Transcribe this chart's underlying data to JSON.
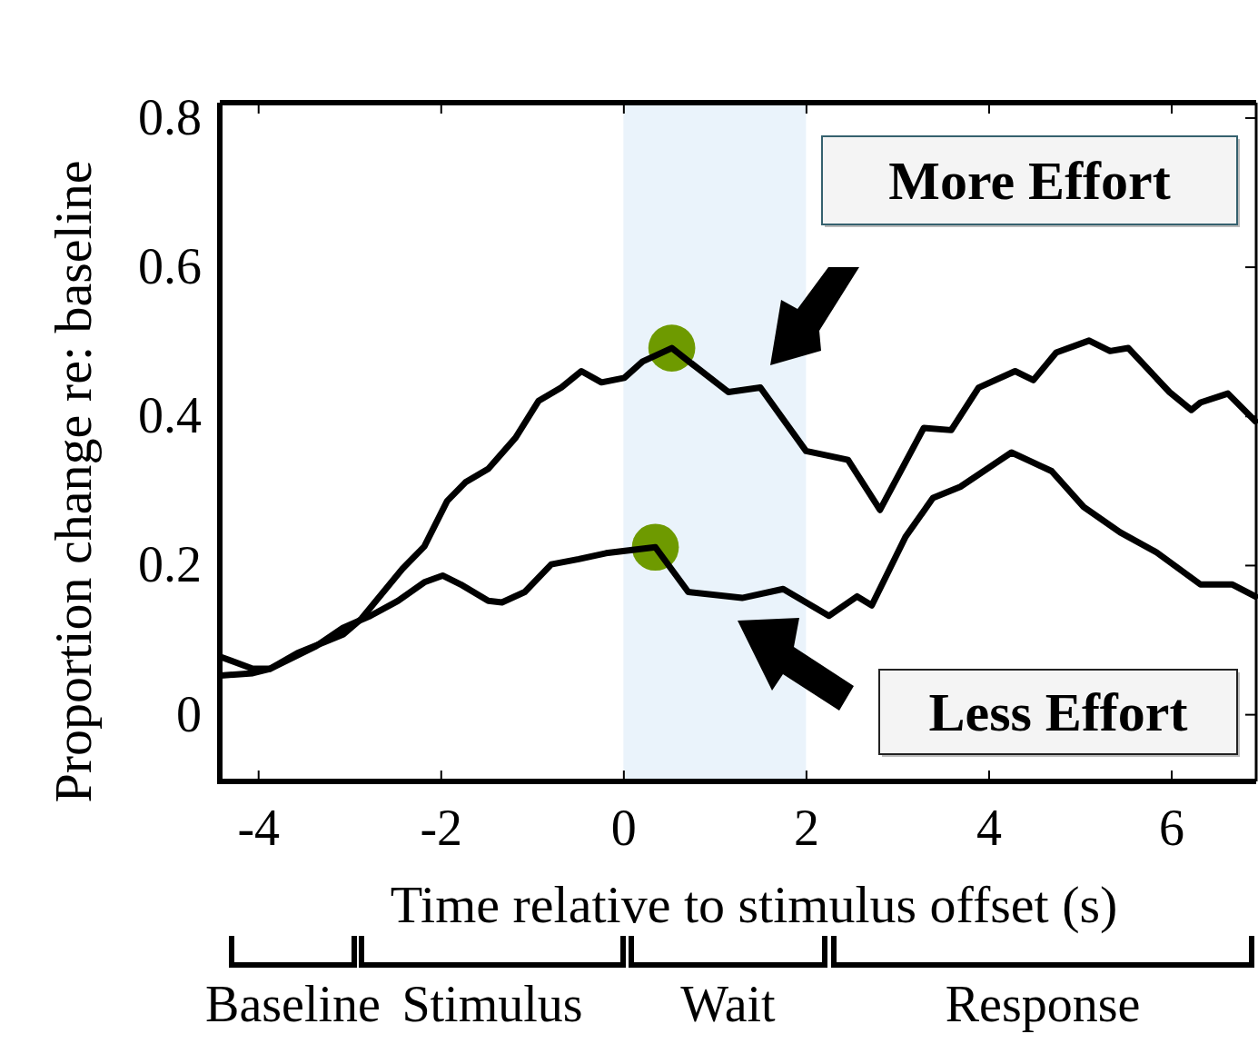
{
  "chart_data": {
    "type": "line",
    "xlabel": "Time relative to stimulus offset (s)",
    "ylabel": "Proportion change re: baseline",
    "xlim": [
      -4.42,
      6.93
    ],
    "ylim": [
      -0.09,
      0.82
    ],
    "xticks": [
      -4,
      -2,
      0,
      2,
      4,
      6
    ],
    "yticks": [
      0,
      0.2,
      0.4,
      0.6,
      0.8
    ],
    "bands": [
      {
        "axis": "x",
        "from": 0,
        "to": 2,
        "color": "#eaf3fb"
      }
    ],
    "grid": false,
    "legend": "right",
    "line_style": "solid",
    "marker": "none",
    "series": [
      {
        "name": "More Effort",
        "color": "#000000",
        "x": [
          -4.41,
          -4.06,
          -3.87,
          -3.57,
          -3.27,
          -3.07,
          -2.87,
          -2.42,
          -2.18,
          -1.93,
          -1.73,
          -1.48,
          -1.18,
          -0.93,
          -0.68,
          -0.46,
          -0.24,
          0.01,
          0.21,
          0.53,
          0.76,
          1.15,
          1.5,
          2.0,
          2.46,
          2.81,
          3.29,
          3.59,
          3.89,
          4.29,
          4.49,
          4.74,
          5.1,
          5.33,
          5.53,
          5.98,
          6.22,
          6.32,
          6.62,
          6.92
        ],
        "values": [
          0.052,
          0.055,
          0.061,
          0.082,
          0.097,
          0.107,
          0.128,
          0.195,
          0.225,
          0.286,
          0.311,
          0.329,
          0.371,
          0.42,
          0.438,
          0.46,
          0.445,
          0.451,
          0.473,
          0.491,
          0.469,
          0.432,
          0.438,
          0.353,
          0.341,
          0.274,
          0.384,
          0.381,
          0.438,
          0.46,
          0.448,
          0.485,
          0.501,
          0.487,
          0.491,
          0.432,
          0.408,
          0.418,
          0.43,
          0.393
        ]
      },
      {
        "name": "Less Effort",
        "color": "#000000",
        "x": [
          -4.41,
          -4.06,
          -3.87,
          -3.37,
          -3.07,
          -2.77,
          -2.47,
          -2.18,
          -1.98,
          -1.78,
          -1.48,
          -1.33,
          -1.08,
          -0.79,
          -0.49,
          -0.19,
          0.35,
          0.71,
          1.3,
          1.75,
          2.25,
          2.56,
          2.72,
          3.09,
          3.39,
          3.69,
          4.25,
          4.69,
          5.04,
          5.44,
          5.84,
          6.32,
          6.67,
          6.92
        ],
        "values": [
          0.077,
          0.061,
          0.061,
          0.091,
          0.116,
          0.132,
          0.152,
          0.177,
          0.186,
          0.174,
          0.152,
          0.15,
          0.164,
          0.201,
          0.208,
          0.216,
          0.224,
          0.164,
          0.156,
          0.168,
          0.132,
          0.158,
          0.146,
          0.238,
          0.29,
          0.305,
          0.351,
          0.326,
          0.278,
          0.244,
          0.217,
          0.174,
          0.174,
          0.158
        ]
      },
      {
        "type": "scatter",
        "marker": "circle",
        "color": "#6e9a00",
        "x": [
          0.53,
          0.35
        ],
        "values": [
          0.491,
          0.224
        ]
      }
    ],
    "annotations": [
      "Baseline",
      "Stimulus",
      "Wait",
      "Response"
    ]
  }
}
